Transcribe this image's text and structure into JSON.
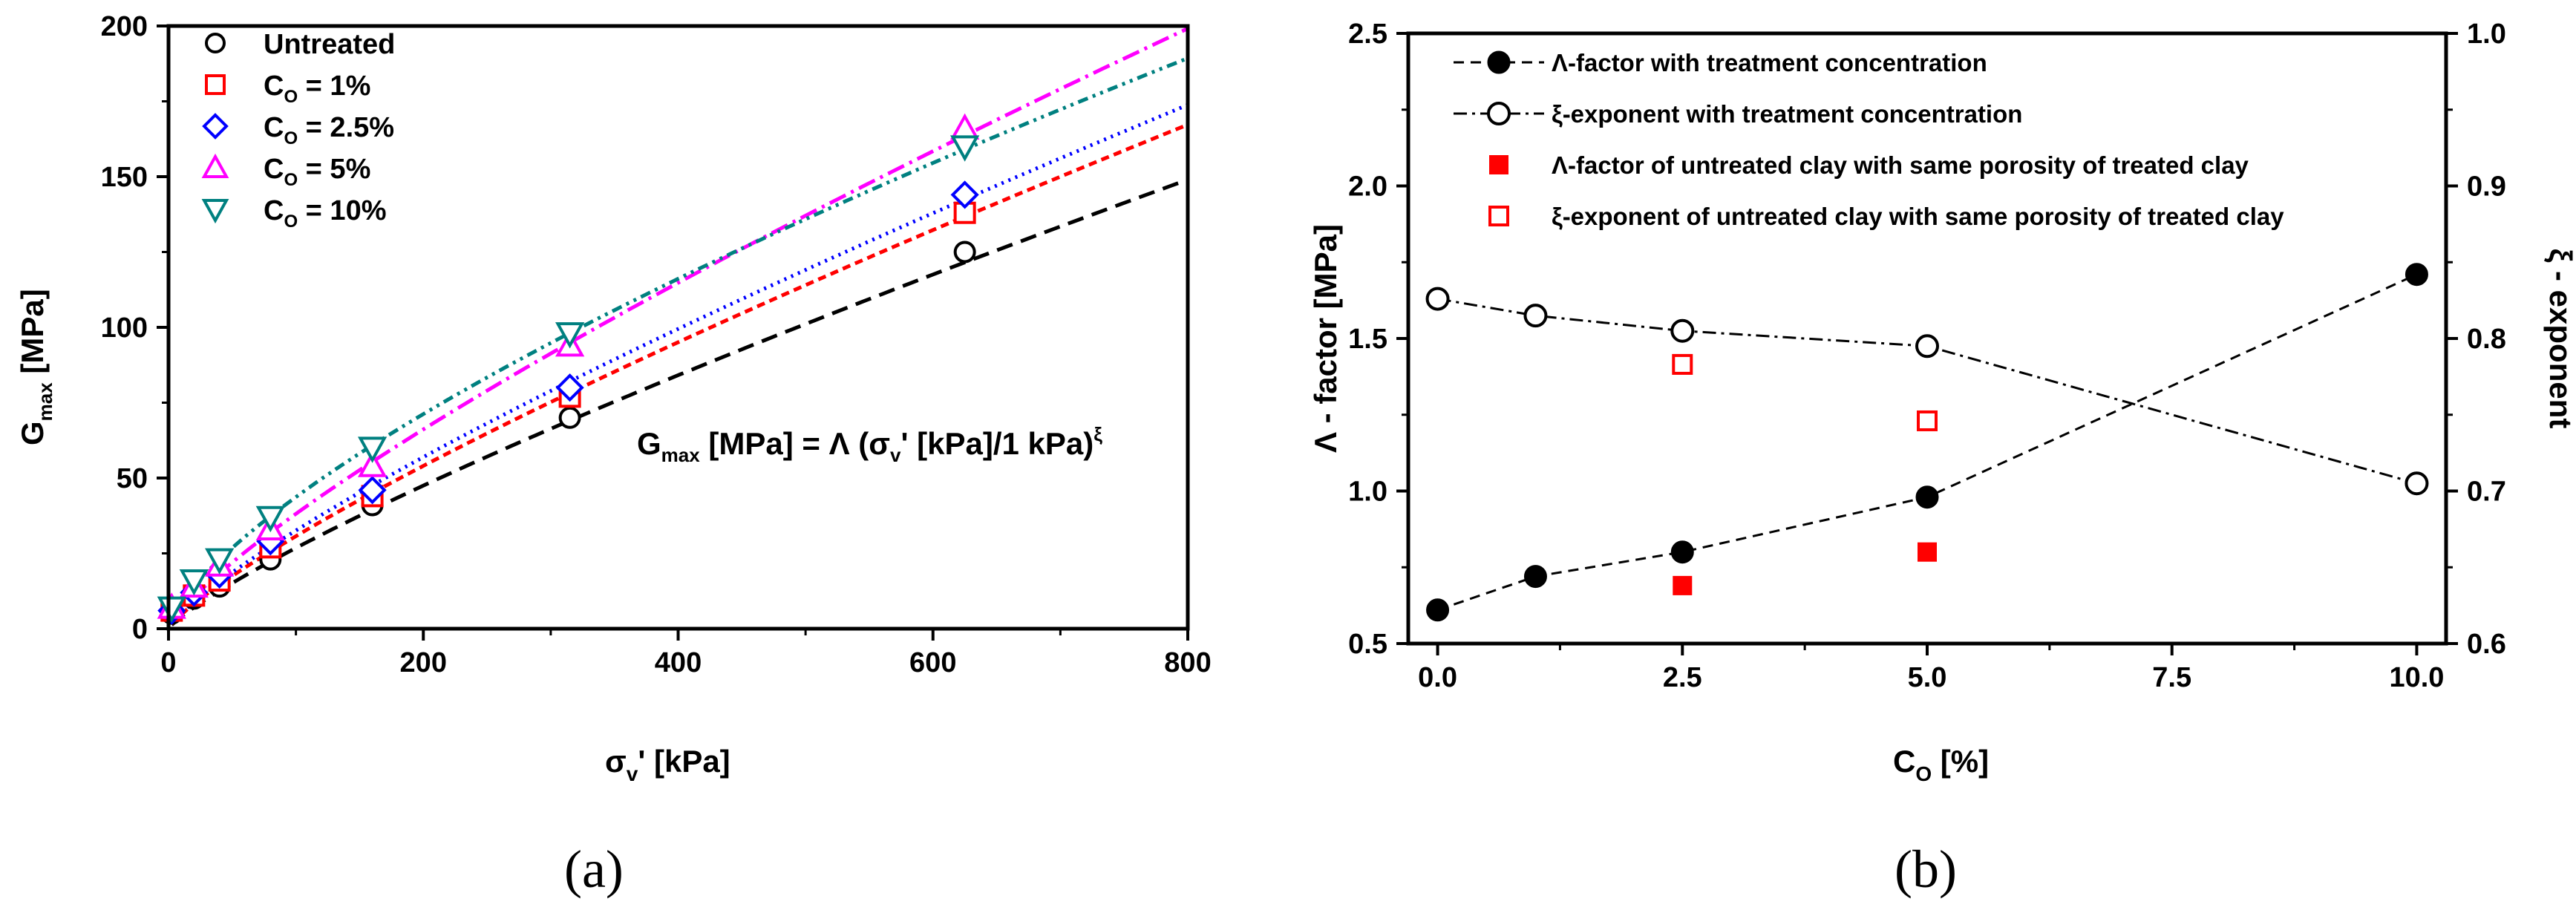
{
  "chart_data": [
    {
      "type": "scatter",
      "panel_label": "(a)",
      "xlabel": {
        "main": "σ",
        "sub": "v",
        "rest": "' [kPa]"
      },
      "ylabel": {
        "main": "G",
        "sub": "max",
        "rest": " [MPa]"
      },
      "xlim": [
        0,
        800
      ],
      "ylim": [
        0,
        200
      ],
      "xticks": [
        0,
        200,
        400,
        600,
        800
      ],
      "yticks": [
        0,
        50,
        100,
        150,
        200
      ],
      "equation": {
        "p1": "G",
        "p1sub": "max",
        "p2": " [MPa] = Λ (σ",
        "p2sub": "v",
        "p3": "' [kPa]/1 kPa)",
        "p3sup": "ξ"
      },
      "series": [
        {
          "name": "Untreated",
          "label_main": "Untreated",
          "label_sub": "",
          "label_rest": "",
          "marker": "circle",
          "color": "#000000",
          "dash": "22,12",
          "x": [
            2.5,
            20,
            40,
            80,
            160,
            315,
            625
          ],
          "y": [
            5,
            10,
            14,
            23,
            41,
            70,
            125
          ],
          "fit": {
            "A": 0.6,
            "xi": 0.825,
            "xmin": 2.5,
            "xmax": 800
          }
        },
        {
          "name": "C_O = 1%",
          "label_main": "C",
          "label_sub": "O",
          "label_rest": " = 1%",
          "marker": "square",
          "color": "#ff0000",
          "dash": "11,7",
          "x": [
            2.5,
            20,
            40,
            80,
            160,
            315,
            625
          ],
          "y": [
            6,
            11,
            16,
            27,
            44,
            77,
            138
          ],
          "fit": {
            "A": 0.72,
            "xi": 0.815,
            "xmin": 2.5,
            "xmax": 800
          }
        },
        {
          "name": "C_O = 2.5%",
          "label_main": "C",
          "label_sub": "O",
          "label_rest": " = 2.5%",
          "marker": "diamond",
          "color": "#0000ff",
          "dash": "3,7",
          "x": [
            2.5,
            20,
            40,
            80,
            160,
            315,
            625
          ],
          "y": [
            6,
            12,
            18,
            29,
            46,
            80,
            144
          ],
          "fit": {
            "A": 0.8,
            "xi": 0.805,
            "xmin": 2.5,
            "xmax": 800
          }
        },
        {
          "name": "C_O = 5%",
          "label_main": "C",
          "label_sub": "O",
          "label_rest": " = 5%",
          "marker": "triangle-up",
          "color": "#ff00ff",
          "dash": "24,8,4,8",
          "x": [
            2.5,
            20,
            40,
            80,
            160,
            315,
            625
          ],
          "y": [
            7,
            14,
            21,
            33,
            54,
            94,
            166
          ],
          "fit": {
            "A": 0.98,
            "xi": 0.795,
            "xmin": 2.5,
            "xmax": 800
          }
        },
        {
          "name": "C_O = 10%",
          "label_main": "C",
          "label_sub": "O",
          "label_rest": " = 10%",
          "marker": "triangle-down",
          "color": "#008080",
          "dash": "14,7,4,7,4,7",
          "x": [
            2.5,
            20,
            40,
            80,
            160,
            315,
            625
          ],
          "y": [
            7,
            16,
            23,
            37,
            60,
            98,
            160
          ],
          "fit": {
            "A": 1.7,
            "xi": 0.705,
            "xmin": 2.5,
            "xmax": 800
          }
        }
      ]
    },
    {
      "type": "line",
      "panel_label": "(b)",
      "xlabel": {
        "main": "C",
        "sub": "O",
        "rest": " [%]"
      },
      "ylabel": "Λ - factor [MPa]",
      "y2label": "ξ - exponent",
      "xlim": [
        -0.3,
        10.3
      ],
      "ylim": [
        0.5,
        2.5
      ],
      "y2lim": [
        0.6,
        1.0
      ],
      "xticks": [
        0.0,
        2.5,
        5.0,
        7.5,
        10.0
      ],
      "xtick_labels": [
        "0.0",
        "2.5",
        "5.0",
        "7.5",
        "10.0"
      ],
      "yticks": [
        0.5,
        1.0,
        1.5,
        2.0,
        2.5
      ],
      "ytick_labels": [
        "0.5",
        "1.0",
        "1.5",
        "2.0",
        "2.5"
      ],
      "y2ticks": [
        0.6,
        0.7,
        0.8,
        0.9,
        1.0
      ],
      "y2tick_labels": [
        "0.6",
        "0.7",
        "0.8",
        "0.9",
        "1.0"
      ],
      "series": [
        {
          "name": "Λ-factor with treatment concentration",
          "axis": "left",
          "marker": "filled-circle",
          "color": "#000000",
          "line": "dashed",
          "x": [
            0,
            1,
            2.5,
            5,
            10
          ],
          "y": [
            0.61,
            0.72,
            0.8,
            0.98,
            1.71
          ]
        },
        {
          "name": "ξ-exponent with treatment concentration",
          "axis": "right",
          "marker": "open-circle",
          "color": "#000000",
          "line": "dash-dot",
          "x": [
            0,
            1,
            2.5,
            5,
            10
          ],
          "y": [
            0.826,
            0.815,
            0.805,
            0.795,
            0.705
          ]
        },
        {
          "name": "Λ-factor of untreated clay with same porosity of treated clay",
          "axis": "left",
          "marker": "filled-square",
          "color": "#ff0000",
          "line": "none",
          "x": [
            2.5,
            5
          ],
          "y": [
            0.69,
            0.8
          ]
        },
        {
          "name": "ξ-exponent of untreated clay with same porosity of treated clay",
          "axis": "right",
          "marker": "open-square",
          "color": "#ff0000",
          "line": "none",
          "x": [
            2.5,
            5
          ],
          "y": [
            0.783,
            0.746
          ]
        }
      ]
    }
  ]
}
